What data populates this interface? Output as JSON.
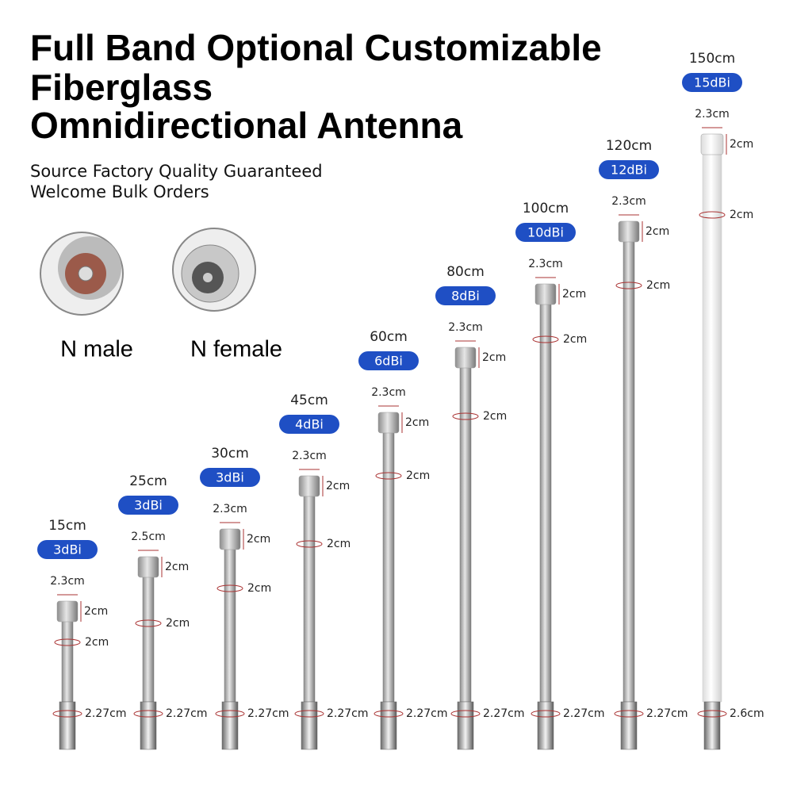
{
  "header": {
    "title": [
      "Full Band Optional Customizable",
      "Fiberglass",
      "Omnidirectional Antenna"
    ],
    "subtitle": [
      "Source Factory Quality Guaranteed",
      "Welcome Bulk Orders"
    ]
  },
  "connectors": [
    {
      "label": "N male"
    },
    {
      "label": "N female"
    }
  ],
  "antennas": [
    {
      "length": "15cm",
      "gain": "3dBi",
      "cap_width": "2.3cm",
      "cap_height": "2cm",
      "diameter": "2cm",
      "base_diameter": "2.27cm"
    },
    {
      "length": "25cm",
      "gain": "3dBi",
      "cap_width": "2.5cm",
      "cap_height": "2cm",
      "diameter": "2cm",
      "base_diameter": "2.27cm"
    },
    {
      "length": "30cm",
      "gain": "3dBi",
      "cap_width": "2.3cm",
      "cap_height": "2cm",
      "diameter": "2cm",
      "base_diameter": "2.27cm"
    },
    {
      "length": "45cm",
      "gain": "4dBi",
      "cap_width": "2.3cm",
      "cap_height": "2cm",
      "diameter": "2cm",
      "base_diameter": "2.27cm"
    },
    {
      "length": "60cm",
      "gain": "6dBi",
      "cap_width": "2.3cm",
      "cap_height": "2cm",
      "diameter": "2cm",
      "base_diameter": "2.27cm"
    },
    {
      "length": "80cm",
      "gain": "8dBi",
      "cap_width": "2.3cm",
      "cap_height": "2cm",
      "diameter": "2cm",
      "base_diameter": "2.27cm"
    },
    {
      "length": "100cm",
      "gain": "10dBi",
      "cap_width": "2.3cm",
      "cap_height": "2cm",
      "diameter": "2cm",
      "base_diameter": "2.27cm"
    },
    {
      "length": "120cm",
      "gain": "12dBi",
      "cap_width": "2.3cm",
      "cap_height": "2cm",
      "diameter": "2cm",
      "base_diameter": "2.27cm"
    },
    {
      "length": "150cm",
      "gain": "15dBi",
      "cap_width": "2.3cm",
      "cap_height": "2cm",
      "diameter": "2cm",
      "base_diameter": "2.6cm"
    }
  ]
}
